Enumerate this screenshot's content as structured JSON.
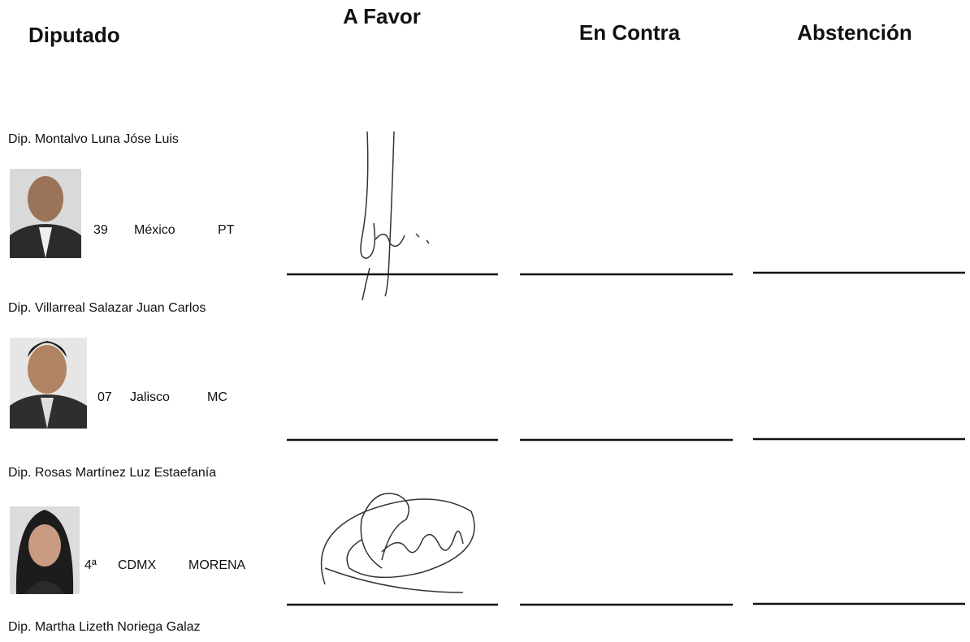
{
  "header": {
    "columns": [
      "Diputado",
      "A Favor",
      "En Contra",
      "Abstención"
    ]
  },
  "rows": [
    {
      "name": "Dip. Montalvo Luna Jóse Luis",
      "district": "39",
      "state": "México",
      "party": "PT"
    },
    {
      "name": "Dip. Villarreal Salazar Juan Carlos",
      "district": "07",
      "state": "Jalisco",
      "party": "MC"
    },
    {
      "name": "Dip. Rosas Martínez Luz Estaefanía",
      "district": "4ª",
      "state": "CDMX",
      "party": "MORENA"
    },
    {
      "name": "Dip. Martha Lizeth Noriega Galaz"
    }
  ]
}
